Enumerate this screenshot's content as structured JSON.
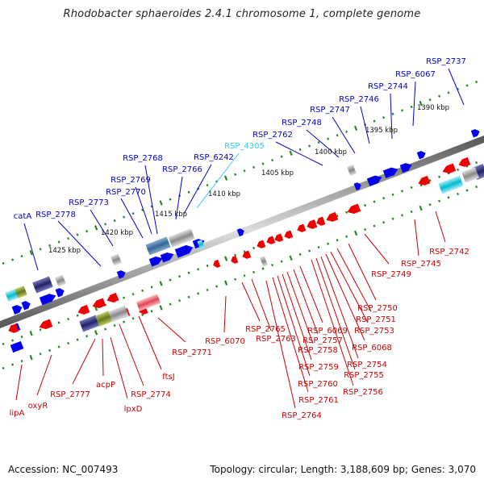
{
  "title": "Rhodobacter sphaeroides 2.4.1 chromosome 1, complete genome",
  "footer": {
    "accession": "Accession: NC_007493",
    "topology": "Topology: circular; Length: 3,188,609 bp; Genes: 3,070"
  },
  "colors": {
    "forward_label": "#0000cc",
    "reverse_label": "#cc0000",
    "highlight_label": "#33ccee",
    "forward_gene": "#0000ee",
    "reverse_gene": "#ee0000",
    "tick": "#228822",
    "backbone": "#777777"
  },
  "scale_labels": [
    "1390 kbp",
    "1395 kbp",
    "1400 kbp",
    "1405 kbp",
    "1410 kbp",
    "1415 kbp",
    "1420 kbp",
    "1425 kbp"
  ],
  "upper_labels": [
    "RSP_2737",
    "RSP_6067",
    "RSP_2744",
    "RSP_2746",
    "RSP_2747",
    "RSP_2748",
    "RSP_2762",
    "RSP_4305",
    "RSP_6242",
    "RSP_2766",
    "RSP_2768",
    "RSP_2769",
    "RSP_2770",
    "RSP_2773",
    "RSP_2778",
    "catA"
  ],
  "lower_labels": [
    "RSP_2742",
    "RSP_2745",
    "RSP_2749",
    "RSP_2750",
    "RSP_2751",
    "RSP_2753",
    "RSP_6068",
    "RSP_2754",
    "RSP_2755",
    "RSP_2756",
    "RSP_6069",
    "RSP_2757",
    "RSP_2758",
    "RSP_2759",
    "RSP_2760",
    "RSP_2761",
    "RSP_2764",
    "RSP_2765",
    "RSP_2763",
    "RSP_6070",
    "RSP_2771",
    "ftsJ",
    "RSP_2774",
    "lpxD",
    "acpP",
    "RSP_2777",
    "oxyR",
    "lipA"
  ]
}
